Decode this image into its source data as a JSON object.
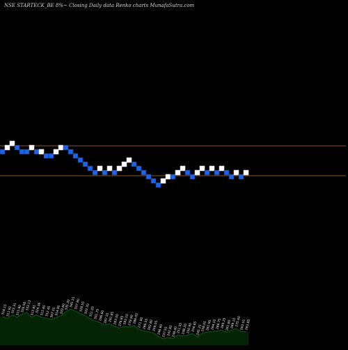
{
  "header": {
    "title": "NSE STARTECK_BE 8%~  Closing Daily data  Renko  charts MunafaSutra.com"
  },
  "colors": {
    "background": "#000000",
    "up_brick": "#ffffff",
    "down_brick": "#1e64e6",
    "brick_outline": "#0a2f7a",
    "reference_line": "#b87333",
    "volume_fill": "#052405",
    "volume_line": "#0f5a14"
  },
  "chart_data": {
    "type": "renko",
    "reference_lines": [
      1,
      4
    ],
    "bricks": [
      {
        "level": 0,
        "dir": "down"
      },
      {
        "level": 1,
        "dir": "up"
      },
      {
        "level": 2,
        "dir": "up"
      },
      {
        "level": 1,
        "dir": "down"
      },
      {
        "level": 0,
        "dir": "down"
      },
      {
        "level": 0,
        "dir": "down"
      },
      {
        "level": 1,
        "dir": "up"
      },
      {
        "level": 0,
        "dir": "down"
      },
      {
        "level": 0,
        "dir": "up"
      },
      {
        "level": -1,
        "dir": "down"
      },
      {
        "level": -1,
        "dir": "down"
      },
      {
        "level": 0,
        "dir": "up"
      },
      {
        "level": 1,
        "dir": "up"
      },
      {
        "level": 1,
        "dir": "down"
      },
      {
        "level": 0,
        "dir": "down"
      },
      {
        "level": -1,
        "dir": "down"
      },
      {
        "level": -2,
        "dir": "down"
      },
      {
        "level": -3,
        "dir": "down"
      },
      {
        "level": -4,
        "dir": "down"
      },
      {
        "level": -5,
        "dir": "down"
      },
      {
        "level": -4,
        "dir": "up"
      },
      {
        "level": -5,
        "dir": "down"
      },
      {
        "level": -4,
        "dir": "up"
      },
      {
        "level": -5,
        "dir": "down"
      },
      {
        "level": -4,
        "dir": "up"
      },
      {
        "level": -3,
        "dir": "up"
      },
      {
        "level": -2,
        "dir": "up"
      },
      {
        "level": -3,
        "dir": "down"
      },
      {
        "level": -4,
        "dir": "down"
      },
      {
        "level": -5,
        "dir": "down"
      },
      {
        "level": -6,
        "dir": "down"
      },
      {
        "level": -7,
        "dir": "down"
      },
      {
        "level": -8,
        "dir": "down"
      },
      {
        "level": -7,
        "dir": "up"
      },
      {
        "level": -6,
        "dir": "up"
      },
      {
        "level": -6,
        "dir": "down"
      },
      {
        "level": -5,
        "dir": "up"
      },
      {
        "level": -4,
        "dir": "up"
      },
      {
        "level": -5,
        "dir": "down"
      },
      {
        "level": -6,
        "dir": "down"
      },
      {
        "level": -5,
        "dir": "up"
      },
      {
        "level": -4,
        "dir": "up"
      },
      {
        "level": -5,
        "dir": "down"
      },
      {
        "level": -4,
        "dir": "up"
      },
      {
        "level": -5,
        "dir": "down"
      },
      {
        "level": -4,
        "dir": "up"
      },
      {
        "level": -5,
        "dir": "down"
      },
      {
        "level": -6,
        "dir": "down"
      },
      {
        "level": -5,
        "dir": "up"
      },
      {
        "level": -6,
        "dir": "down"
      },
      {
        "level": -5,
        "dir": "up"
      }
    ],
    "volume_labels": [
      "318.15",
      "311.91",
      "323.31",
      "315.90",
      "326.56",
      "333.13",
      "315.85",
      "324.36",
      "315.65",
      "312.45",
      "307.55",
      "314.95",
      "320.60",
      "335.30",
      "345.15",
      "337.90",
      "328.55",
      "320.70",
      "311.05",
      "301.75",
      "296.60",
      "287.55",
      "291.85",
      "283.00",
      "276.85",
      "283.10",
      "279.90",
      "286.05",
      "271.80",
      "266.55",
      "262.80",
      "259.05",
      "246.60",
      "237.55",
      "242.85",
      "238.40",
      "251.55",
      "248.20",
      "250.95",
      "256.85",
      "245.25",
      "258.05",
      "261.95",
      "264.55",
      "266.75",
      "269.25",
      "261.80",
      "269.10",
      "275.40",
      "263.55",
      "263.85"
    ]
  }
}
